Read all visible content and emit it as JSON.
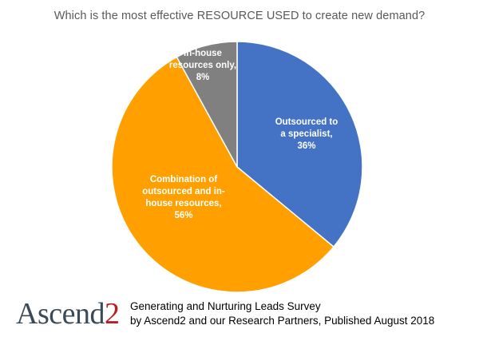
{
  "chart_data": {
    "type": "pie",
    "title": "Which is the most effective RESOURCE USED to create new demand?",
    "slices": [
      {
        "label": [
          "Outsourced to",
          "a specialist,",
          "36%"
        ],
        "value": 36,
        "color": "#4472c4"
      },
      {
        "label": [
          "Combination of",
          "outsourced and in-",
          "house resources,",
          "56%"
        ],
        "value": 56,
        "color": "#ffa000"
      },
      {
        "label": [
          "In-house",
          "resources only,",
          "8%"
        ],
        "value": 8,
        "color": "#808080"
      }
    ]
  },
  "footer": {
    "logo_main": "Ascend",
    "logo_number": "2",
    "line1": "Generating and Nurturing Leads Survey",
    "line2": "by Ascend2 and our Research Partners, Published August 2018"
  }
}
